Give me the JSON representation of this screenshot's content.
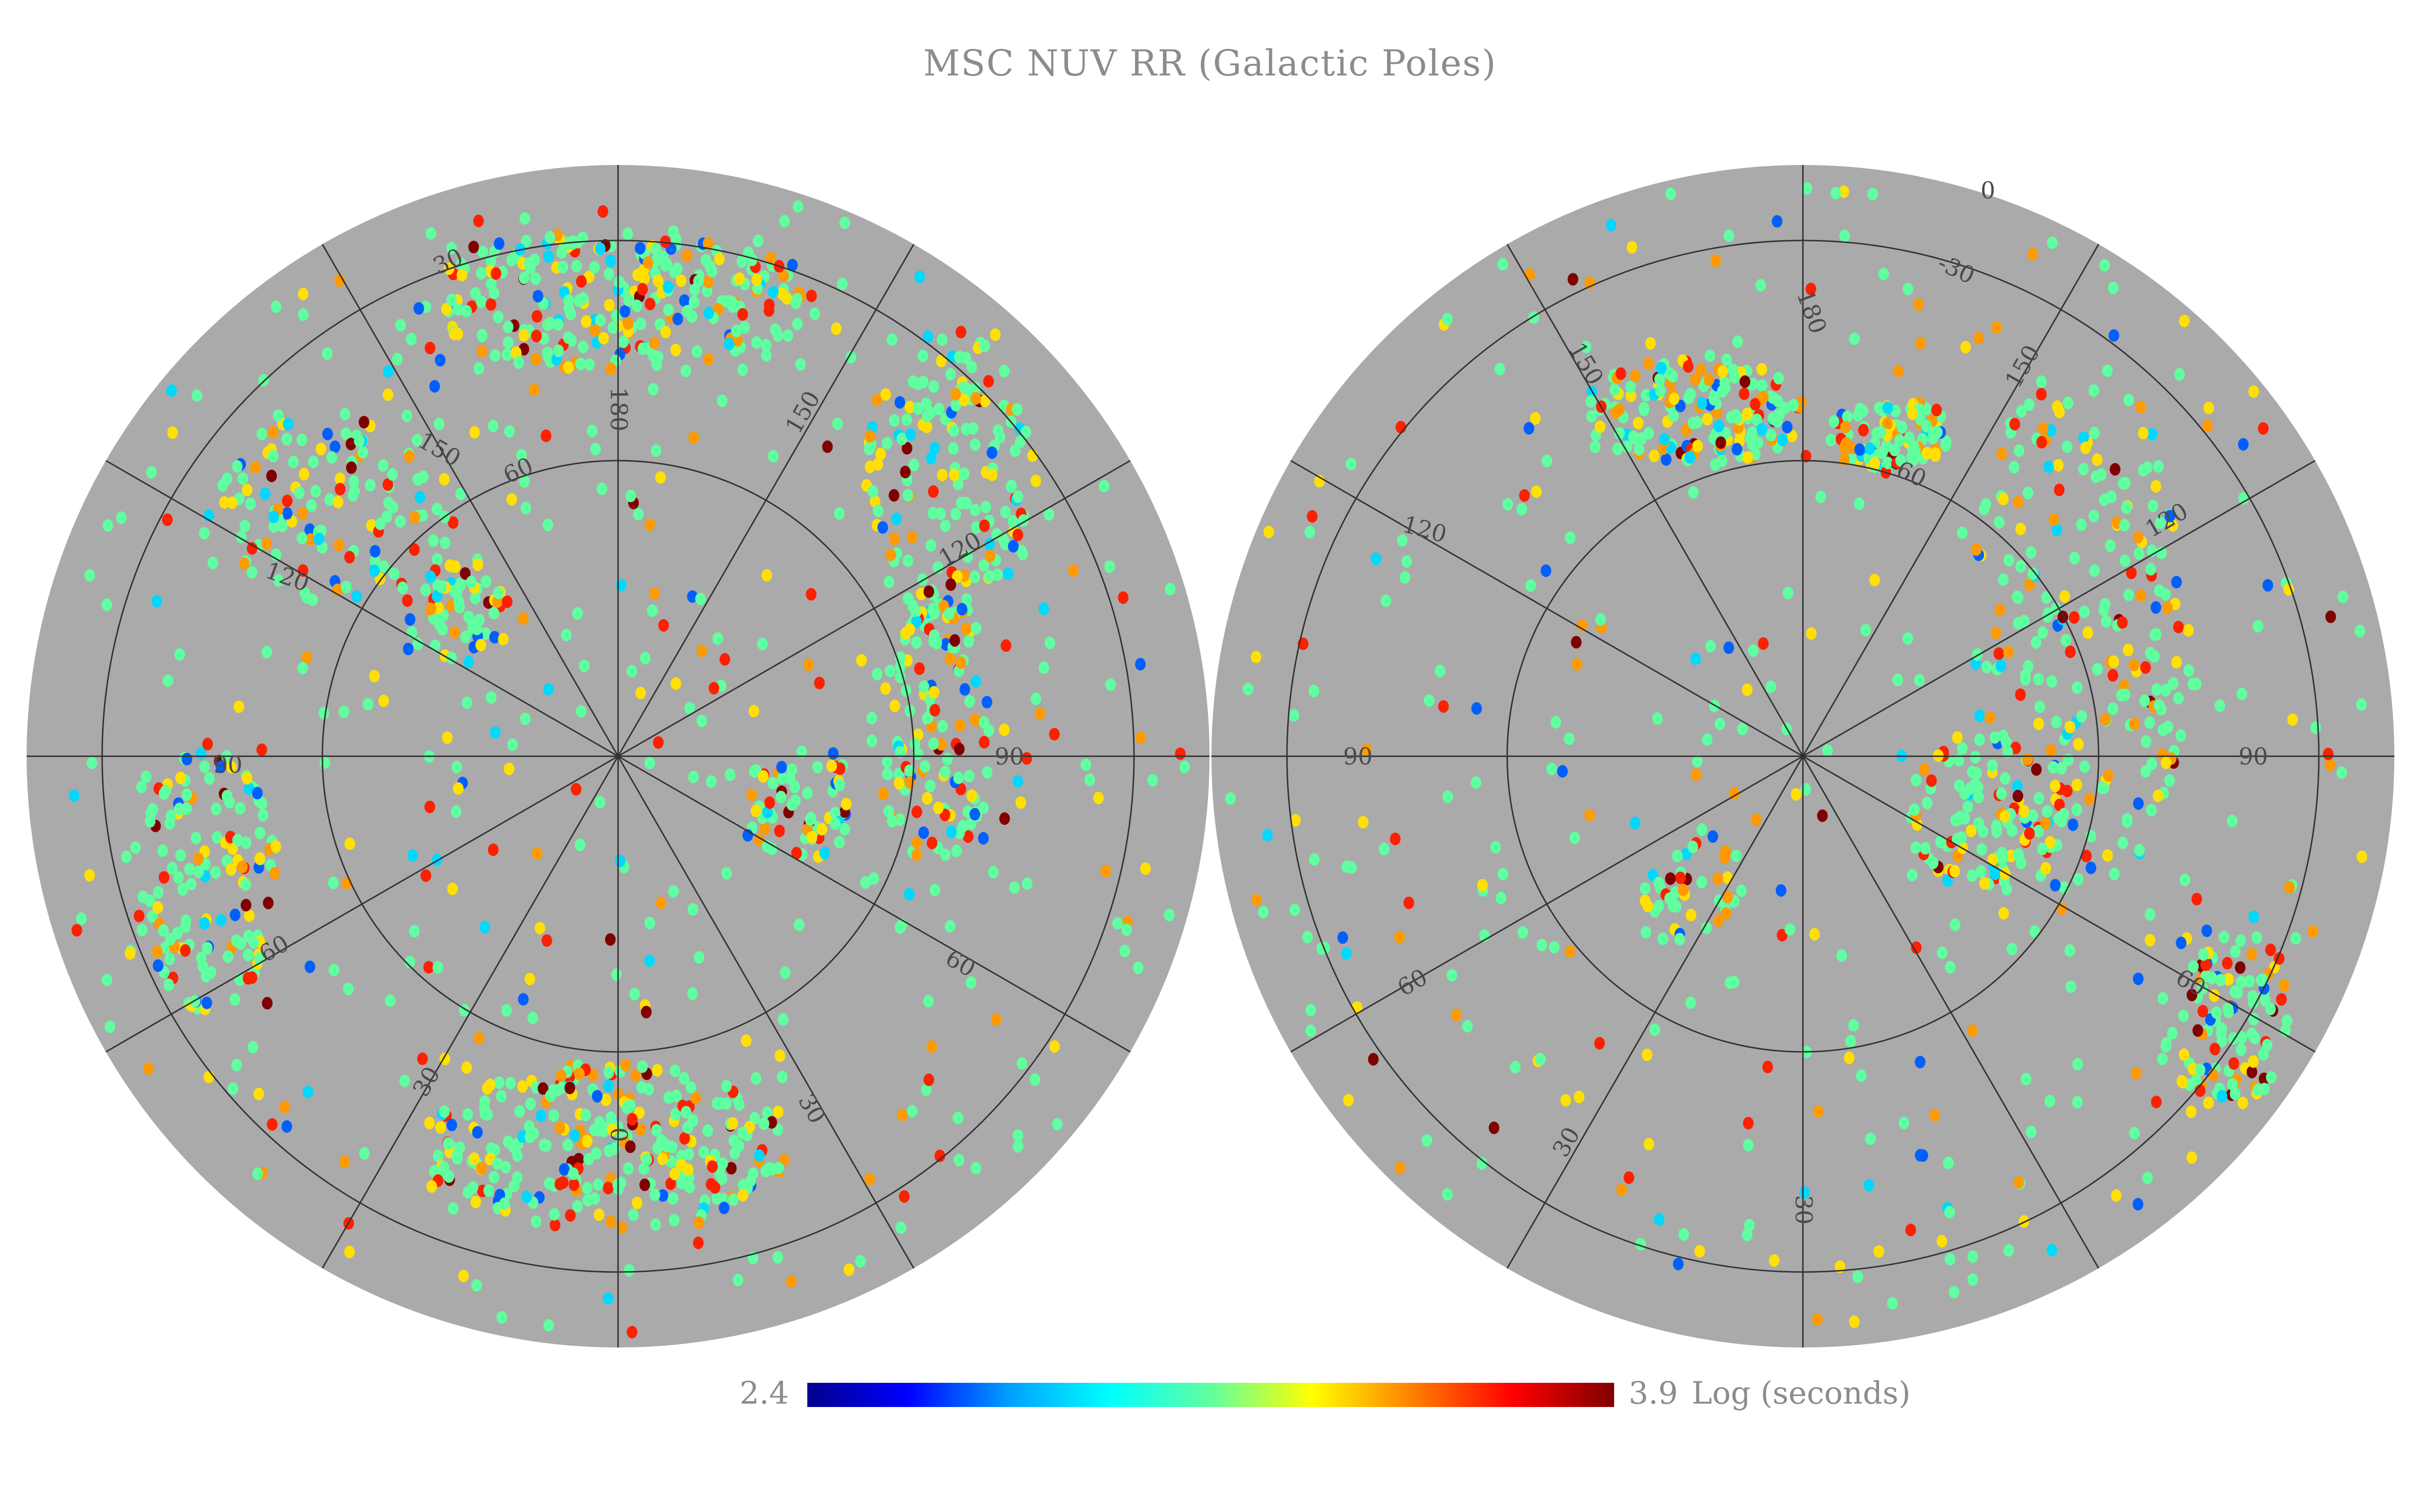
{
  "title": "MSC NUV RR (Galactic Poles)",
  "colorbar": {
    "min_label": "2.4",
    "max_label": "3.9",
    "unit_label": "Log (seconds)",
    "colors": [
      "#00008f",
      "#0000ff",
      "#00a0ff",
      "#00ffff",
      "#60ff9f",
      "#ffff00",
      "#ff8000",
      "#ff0000",
      "#800000"
    ]
  },
  "map_style": {
    "disk_color": "#aaaaaa",
    "graticule_color": "#333333"
  },
  "hemispheres": [
    {
      "name": "north",
      "longitude_labels": [
        "180",
        "150",
        "120",
        "90",
        "60",
        "30",
        "0",
        "150",
        "120",
        "90",
        "60",
        "30"
      ],
      "latitude_labels": [
        "30",
        "60"
      ]
    },
    {
      "name": "south",
      "longitude_labels": [
        "0",
        "30",
        "180",
        "150",
        "120",
        "90",
        "60",
        "30",
        "150",
        "120",
        "90",
        "60"
      ],
      "latitude_labels": [
        "-30",
        "-60"
      ]
    }
  ]
}
